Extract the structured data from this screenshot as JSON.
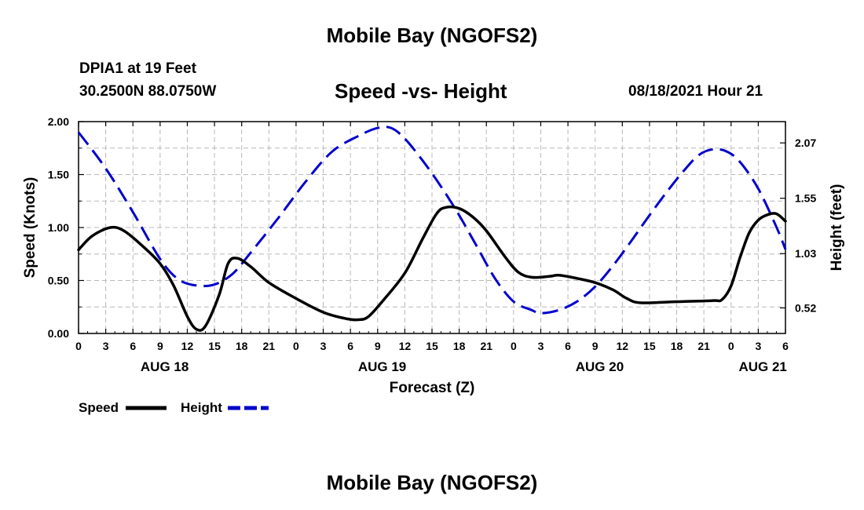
{
  "header": {
    "title": "Mobile Bay (NGOFS2)",
    "station": "DPIA1 at 19 Feet",
    "coordinates": "30.2500N  88.0750W",
    "subtitle": "Speed -vs- Height",
    "datetime": "08/18/2021 Hour 21"
  },
  "footer": {
    "title": "Mobile Bay (NGOFS2)"
  },
  "chart_data": {
    "type": "line",
    "xlabel": "Forecast (Z)",
    "ylabel_left": "Speed (Knots)",
    "ylabel_right": "Height (feet)",
    "x_unit": "hours from 08/18 00Z",
    "xlim": [
      0,
      78
    ],
    "ylim_left": [
      0,
      2.0
    ],
    "ylim_right": [
      0.28,
      2.27
    ],
    "grid": true,
    "legend_position": "bottom-left",
    "x_tick_labels": [
      "0",
      "3",
      "6",
      "9",
      "12",
      "15",
      "18",
      "21",
      "0",
      "3",
      "6",
      "9",
      "12",
      "15",
      "18",
      "21",
      "0",
      "3",
      "6",
      "9",
      "12",
      "15",
      "18",
      "21",
      "0",
      "3",
      "6"
    ],
    "date_labels": [
      {
        "label": "AUG 18",
        "hour": 9.5
      },
      {
        "label": "AUG 19",
        "hour": 33.5
      },
      {
        "label": "AUG 20",
        "hour": 57.5
      },
      {
        "label": "AUG 21",
        "hour": 75.5
      }
    ],
    "y_left_ticks": [
      "0.00",
      "0.50",
      "1.00",
      "1.50",
      "2.00"
    ],
    "y_right_ticks": [
      "0.52",
      "1.03",
      "1.55",
      "2.07"
    ],
    "series": [
      {
        "name": "Speed",
        "axis": "left",
        "color": "#000000",
        "style": "solid",
        "points": [
          [
            0,
            0.79
          ],
          [
            1.5,
            0.92
          ],
          [
            3.5,
            1.0
          ],
          [
            5,
            0.97
          ],
          [
            7,
            0.83
          ],
          [
            9,
            0.66
          ],
          [
            10.5,
            0.45
          ],
          [
            12,
            0.16
          ],
          [
            13,
            0.04
          ],
          [
            14,
            0.07
          ],
          [
            15.5,
            0.36
          ],
          [
            16.5,
            0.66
          ],
          [
            17.5,
            0.71
          ],
          [
            19,
            0.63
          ],
          [
            21,
            0.48
          ],
          [
            24,
            0.33
          ],
          [
            27,
            0.2
          ],
          [
            29.5,
            0.14
          ],
          [
            31,
            0.13
          ],
          [
            32,
            0.16
          ],
          [
            33.5,
            0.3
          ],
          [
            36,
            0.57
          ],
          [
            38,
            0.9
          ],
          [
            39.5,
            1.13
          ],
          [
            40.5,
            1.19
          ],
          [
            42,
            1.18
          ],
          [
            43.5,
            1.1
          ],
          [
            45,
            0.97
          ],
          [
            47,
            0.73
          ],
          [
            48.5,
            0.58
          ],
          [
            50,
            0.53
          ],
          [
            52,
            0.54
          ],
          [
            53,
            0.55
          ],
          [
            55,
            0.52
          ],
          [
            57,
            0.48
          ],
          [
            59,
            0.41
          ],
          [
            60.5,
            0.33
          ],
          [
            62,
            0.29
          ],
          [
            66,
            0.3
          ],
          [
            70,
            0.31
          ],
          [
            71,
            0.32
          ],
          [
            72,
            0.45
          ],
          [
            73,
            0.72
          ],
          [
            74,
            0.95
          ],
          [
            75,
            1.07
          ],
          [
            76,
            1.12
          ],
          [
            77,
            1.13
          ],
          [
            78,
            1.06
          ]
        ]
      },
      {
        "name": "Height",
        "axis": "right",
        "color": "#0000cc",
        "style": "dashed",
        "points": [
          [
            0,
            2.17
          ],
          [
            3,
            1.83
          ],
          [
            6,
            1.42
          ],
          [
            9,
            0.98
          ],
          [
            11,
            0.79
          ],
          [
            13,
            0.73
          ],
          [
            15,
            0.74
          ],
          [
            17,
            0.84
          ],
          [
            19,
            1.04
          ],
          [
            22,
            1.36
          ],
          [
            25,
            1.7
          ],
          [
            28,
            1.99
          ],
          [
            31,
            2.14
          ],
          [
            33,
            2.21
          ],
          [
            34.5,
            2.21
          ],
          [
            36,
            2.11
          ],
          [
            38,
            1.9
          ],
          [
            40,
            1.66
          ],
          [
            42,
            1.39
          ],
          [
            44,
            1.09
          ],
          [
            46,
            0.79
          ],
          [
            48,
            0.58
          ],
          [
            50,
            0.5
          ],
          [
            51,
            0.47
          ],
          [
            53,
            0.5
          ],
          [
            55,
            0.58
          ],
          [
            57,
            0.72
          ],
          [
            59,
            0.92
          ],
          [
            61,
            1.15
          ],
          [
            63,
            1.39
          ],
          [
            65,
            1.62
          ],
          [
            67,
            1.83
          ],
          [
            68.5,
            1.96
          ],
          [
            70,
            2.01
          ],
          [
            71.5,
            1.99
          ],
          [
            73,
            1.89
          ],
          [
            75,
            1.64
          ],
          [
            77,
            1.28
          ],
          [
            78,
            1.07
          ]
        ]
      }
    ]
  },
  "legend": {
    "items": [
      {
        "label": "Speed",
        "color": "#000000",
        "style": "solid"
      },
      {
        "label": "Height",
        "color": "#0000cc",
        "style": "dashed"
      }
    ]
  }
}
